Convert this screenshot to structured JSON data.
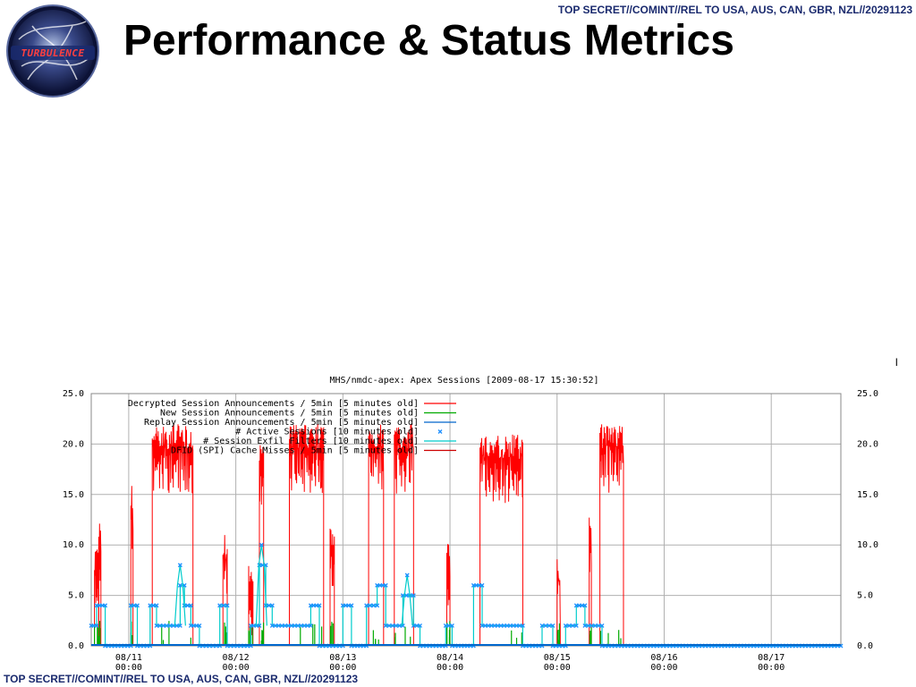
{
  "classification_top": "TOP SECRET//COMINT//REL TO USA, AUS, CAN, GBR, NZL//20291123",
  "classification_bottom": "TOP SECRET//COMINT//REL TO USA, AUS, CAN, GBR, NZL//20291123",
  "logo_text": "TURBULENCE",
  "slide_title": "Performance & Status Metrics",
  "stray_mark": "I",
  "colors": {
    "classification": "#1a2a6e",
    "decrypted": "#ff0000",
    "new": "#00aa00",
    "replay": "#0066cc",
    "active": "#1e90ff",
    "exfil": "#00cccc",
    "cache": "#cc0000",
    "grid": "#b0b0b0"
  },
  "chart_data": {
    "type": "line",
    "title": "MHS/nmdc-apex: Apex Sessions   [2009-08-17 15:30:52]",
    "ylim": [
      0,
      25
    ],
    "y_ticks": [
      "0.0",
      "5.0",
      "10.0",
      "15.0",
      "20.0",
      "25.0"
    ],
    "x_ticks": [
      {
        "day": 11,
        "label1": "08/11",
        "label2": "00:00"
      },
      {
        "day": 12,
        "label1": "08/12",
        "label2": "00:00"
      },
      {
        "day": 13,
        "label1": "08/13",
        "label2": "00:00"
      },
      {
        "day": 14,
        "label1": "08/14",
        "label2": "00:00"
      },
      {
        "day": 15,
        "label1": "08/15",
        "label2": "00:00"
      },
      {
        "day": 16,
        "label1": "08/16",
        "label2": "00:00"
      },
      {
        "day": 17,
        "label1": "08/17",
        "label2": "00:00"
      }
    ],
    "xlim_days": [
      10.65,
      17.65
    ],
    "legend": [
      {
        "label": "Decrypted Session Announcements / 5min [5 minutes old]",
        "style": "line",
        "color": "#ff0000"
      },
      {
        "label": "New Session Announcements / 5min [5 minutes old]",
        "style": "line",
        "color": "#00aa00"
      },
      {
        "label": "Replay Session Announcements / 5min [5 minutes old]",
        "style": "line",
        "color": "#0066cc"
      },
      {
        "label": "# Active Sessions [10 minutes old]",
        "style": "marker",
        "color": "#1e90ff"
      },
      {
        "label": "# Session Exfil Filters [10 minutes old]",
        "style": "line",
        "color": "#00cccc"
      },
      {
        "label": "DFID (SPI) Cache Misses / 5min [5 minutes old]",
        "style": "line",
        "color": "#cc0000"
      }
    ],
    "series": [
      {
        "name": "Decrypted Session Announcements / 5min [5 minutes old]",
        "note": "bursts",
        "bursts": [
          {
            "start": 10.68,
            "end": 10.72,
            "level": 8
          },
          {
            "start": 10.72,
            "end": 10.74,
            "level": 11
          },
          {
            "start": 11.02,
            "end": 11.04,
            "level": 14
          },
          {
            "start": 11.22,
            "end": 11.6,
            "level": 20
          },
          {
            "start": 11.88,
            "end": 11.92,
            "level": 9
          },
          {
            "start": 12.12,
            "end": 12.16,
            "level": 6
          },
          {
            "start": 12.22,
            "end": 12.26,
            "level": 18
          },
          {
            "start": 12.5,
            "end": 12.82,
            "level": 20
          },
          {
            "start": 12.88,
            "end": 12.92,
            "level": 10
          },
          {
            "start": 13.24,
            "end": 13.38,
            "level": 20
          },
          {
            "start": 13.48,
            "end": 13.66,
            "level": 20
          },
          {
            "start": 13.97,
            "end": 14.0,
            "level": 9
          },
          {
            "start": 14.28,
            "end": 14.68,
            "level": 19
          },
          {
            "start": 15.0,
            "end": 15.03,
            "level": 7
          },
          {
            "start": 15.3,
            "end": 15.32,
            "level": 11
          },
          {
            "start": 15.4,
            "end": 15.62,
            "level": 20
          }
        ]
      },
      {
        "name": "New Session Announcements / 5min [5 minutes old]",
        "values_pattern": "sparse spikes 0-2 during active periods"
      },
      {
        "name": "Replay Session Announcements / 5min [5 minutes old]",
        "value": 0
      },
      {
        "name": "# Active Sessions [10 minutes old]",
        "segments": [
          {
            "start": 10.65,
            "end": 10.7,
            "level": 2
          },
          {
            "start": 10.7,
            "end": 10.78,
            "level": 4
          },
          {
            "start": 10.78,
            "end": 11.02,
            "level": 0
          },
          {
            "start": 11.02,
            "end": 11.08,
            "level": 4
          },
          {
            "start": 11.08,
            "end": 11.2,
            "level": 0
          },
          {
            "start": 11.2,
            "end": 11.26,
            "level": 4
          },
          {
            "start": 11.26,
            "end": 11.48,
            "level": 2
          },
          {
            "start": 11.48,
            "end": 11.52,
            "level": 6
          },
          {
            "start": 11.52,
            "end": 11.58,
            "level": 4
          },
          {
            "start": 11.58,
            "end": 11.66,
            "level": 2
          },
          {
            "start": 11.66,
            "end": 11.85,
            "level": 0
          },
          {
            "start": 11.85,
            "end": 11.92,
            "level": 4
          },
          {
            "start": 11.92,
            "end": 12.14,
            "level": 0
          },
          {
            "start": 12.14,
            "end": 12.22,
            "level": 2
          },
          {
            "start": 12.22,
            "end": 12.28,
            "level": 8
          },
          {
            "start": 12.28,
            "end": 12.34,
            "level": 4
          },
          {
            "start": 12.34,
            "end": 12.7,
            "level": 2
          },
          {
            "start": 12.7,
            "end": 12.78,
            "level": 4
          },
          {
            "start": 12.78,
            "end": 13.0,
            "level": 0
          },
          {
            "start": 13.0,
            "end": 13.08,
            "level": 4
          },
          {
            "start": 13.08,
            "end": 13.22,
            "level": 0
          },
          {
            "start": 13.22,
            "end": 13.32,
            "level": 4
          },
          {
            "start": 13.32,
            "end": 13.4,
            "level": 6
          },
          {
            "start": 13.4,
            "end": 13.56,
            "level": 2
          },
          {
            "start": 13.56,
            "end": 13.66,
            "level": 5
          },
          {
            "start": 13.66,
            "end": 13.72,
            "level": 2
          },
          {
            "start": 13.72,
            "end": 13.96,
            "level": 0
          },
          {
            "start": 13.96,
            "end": 14.02,
            "level": 2
          },
          {
            "start": 14.02,
            "end": 14.22,
            "level": 0
          },
          {
            "start": 14.22,
            "end": 14.3,
            "level": 6
          },
          {
            "start": 14.3,
            "end": 14.68,
            "level": 2
          },
          {
            "start": 14.68,
            "end": 14.86,
            "level": 0
          },
          {
            "start": 14.86,
            "end": 14.96,
            "level": 2
          },
          {
            "start": 14.96,
            "end": 15.08,
            "level": 0
          },
          {
            "start": 15.08,
            "end": 15.18,
            "level": 2
          },
          {
            "start": 15.18,
            "end": 15.26,
            "level": 4
          },
          {
            "start": 15.26,
            "end": 15.42,
            "level": 2
          },
          {
            "start": 15.42,
            "end": 17.65,
            "level": 0
          }
        ]
      },
      {
        "name": "# Session Exfil Filters [10 minutes old]",
        "peaks": [
          {
            "day": 11.48,
            "level": 8
          },
          {
            "day": 12.24,
            "level": 10
          },
          {
            "day": 13.6,
            "level": 7
          }
        ]
      },
      {
        "name": "DFID (SPI) Cache Misses / 5min [5 minutes old]",
        "value": 0
      }
    ]
  }
}
